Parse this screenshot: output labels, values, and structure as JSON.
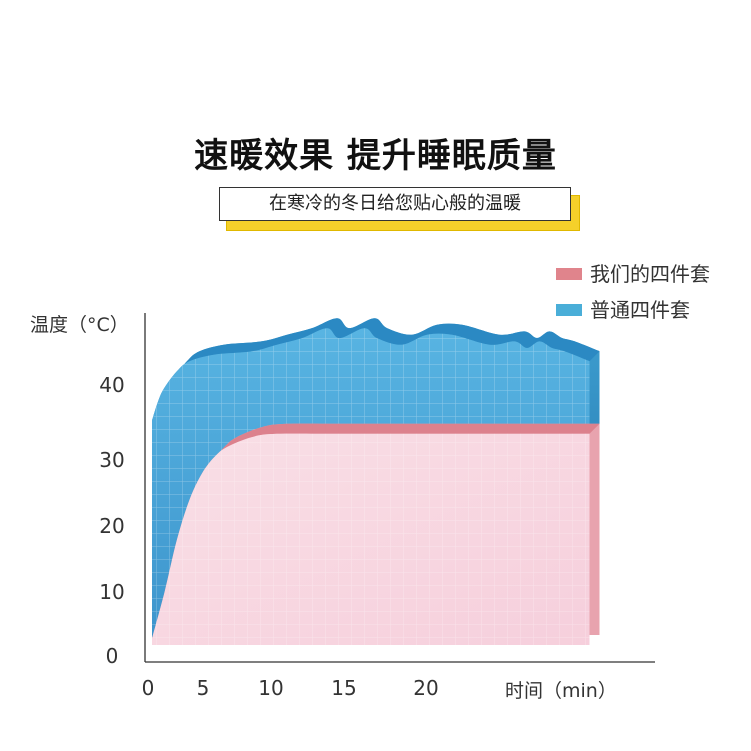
{
  "header": {
    "title": "速暖效果 提升睡眠质量",
    "subtitle": "在寒冷的冬日给您贴心般的温暖"
  },
  "chart_data": {
    "type": "area",
    "xlabel": "时间（min）",
    "ylabel": "温度（°C）",
    "x_ticks": [
      0,
      5,
      10,
      15,
      20
    ],
    "y_ticks": [
      0,
      10,
      20,
      30,
      40
    ],
    "xlim": [
      0,
      35
    ],
    "ylim": [
      0,
      48
    ],
    "legend_position": "top-right",
    "series": [
      {
        "name": "我们的四件套",
        "color": "#e0848c",
        "x": [
          0,
          1,
          2,
          3,
          4,
          5,
          6,
          8,
          10,
          15,
          20,
          25,
          30,
          35
        ],
        "y": [
          1,
          8,
          16,
          22,
          26,
          28.5,
          30,
          31.5,
          32,
          32,
          32,
          32,
          32,
          32
        ]
      },
      {
        "name": "普通四件套",
        "color": "#4aaed8",
        "x": [
          0,
          0.5,
          1,
          2,
          3,
          5,
          8,
          10,
          12,
          14,
          15,
          17,
          18,
          20,
          22,
          24,
          27,
          29,
          30,
          31,
          32,
          33,
          35
        ],
        "y": [
          34,
          37,
          39,
          41.5,
          43,
          44,
          44.5,
          45.5,
          46.5,
          48,
          46.5,
          48,
          46.5,
          45.5,
          47,
          47,
          45.5,
          46,
          45,
          46,
          45,
          44.5,
          43
        ]
      }
    ]
  }
}
